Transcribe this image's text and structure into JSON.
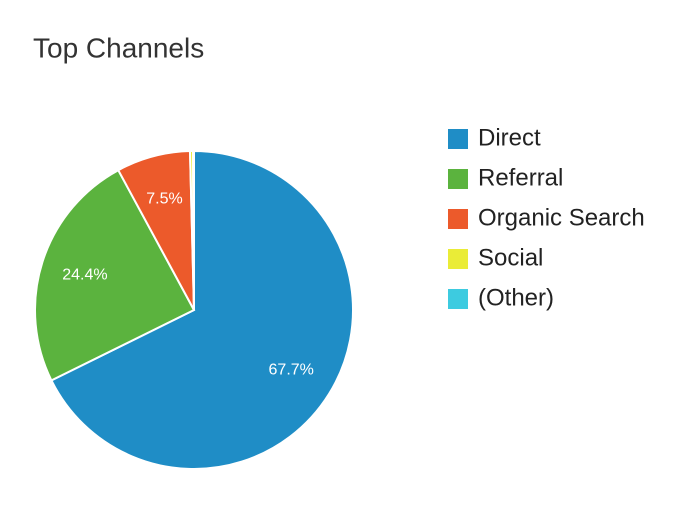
{
  "chart_data": {
    "type": "pie",
    "title": "Top Channels",
    "categories": [
      "Direct",
      "Referral",
      "Organic Search",
      "Social",
      "(Other)"
    ],
    "values": [
      67.7,
      24.4,
      7.5,
      0.3,
      0.1
    ],
    "value_labels": [
      "67.7%",
      "24.4%",
      "7.5%",
      null,
      null
    ],
    "colors": [
      "#1f8dc6",
      "#5bb33e",
      "#ec5a2b",
      "#eaec37",
      "#3dcbe0"
    ],
    "legend": "right"
  }
}
